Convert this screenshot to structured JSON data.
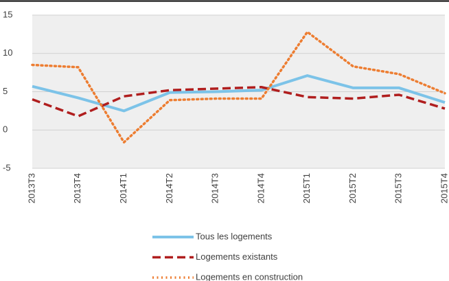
{
  "chart_data": {
    "type": "line",
    "categories": [
      "2013T3",
      "2013T4",
      "2014T1",
      "2014T2",
      "2014T3",
      "2014T4",
      "2015T1",
      "2015T2",
      "2015T3",
      "2015T4"
    ],
    "series": [
      {
        "name": "Tous les logements",
        "color": "#7cc3e8",
        "style": "solid",
        "values": [
          5.7,
          4.2,
          2.5,
          4.9,
          5.0,
          5.2,
          7.1,
          5.5,
          5.5,
          3.6
        ]
      },
      {
        "name": "Logements existants",
        "color": "#b01e1e",
        "style": "dashed",
        "values": [
          4.0,
          1.8,
          4.4,
          5.2,
          5.4,
          5.6,
          4.3,
          4.1,
          4.6,
          2.8
        ]
      },
      {
        "name": "Logements en construction",
        "color": "#ed7d31",
        "style": "dotted",
        "values": [
          8.5,
          8.2,
          -1.6,
          3.9,
          4.1,
          4.1,
          12.8,
          8.3,
          7.3,
          4.8
        ]
      }
    ],
    "ylim": [
      -5,
      15
    ],
    "yticks": [
      -5,
      0,
      5,
      10,
      15
    ],
    "grid": true,
    "legend": "bottom"
  }
}
